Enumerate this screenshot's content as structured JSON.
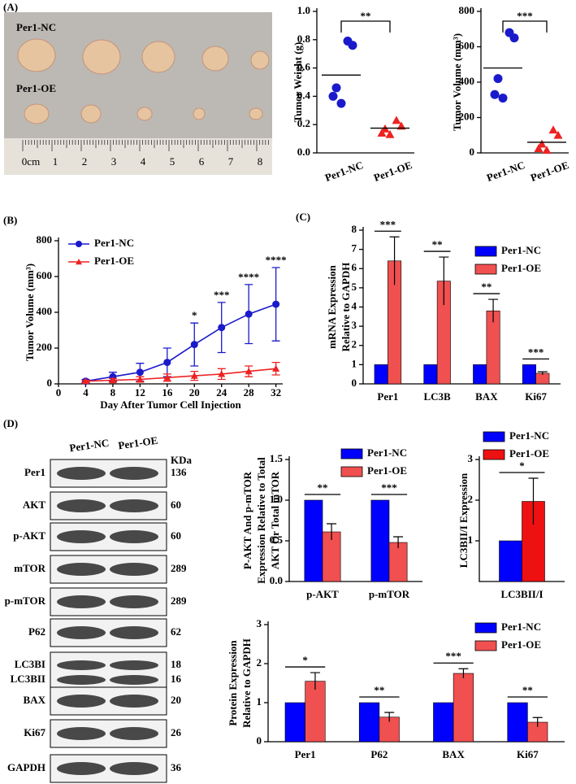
{
  "panel_labels": [
    "(A)",
    "(B)",
    "(C)",
    "(D)"
  ],
  "photo": {
    "labels": [
      "Per1-NC",
      "Per1-OE"
    ],
    "ruler": [
      "0cm",
      "1",
      "2",
      "3",
      "4",
      "5",
      "6",
      "7",
      "8"
    ]
  },
  "blot": {
    "header": [
      "Per1-NC",
      "Per1-OE",
      "KDa"
    ],
    "rows": [
      {
        "labels": [
          "Per1"
        ],
        "kda": [
          136
        ]
      },
      {
        "labels": [
          "AKT"
        ],
        "kda": [
          60
        ]
      },
      {
        "labels": [
          "p-AKT"
        ],
        "kda": [
          60
        ]
      },
      {
        "labels": [
          "mTOR"
        ],
        "kda": [
          289
        ]
      },
      {
        "labels": [
          "p-mTOR"
        ],
        "kda": [
          289
        ]
      },
      {
        "labels": [
          "P62"
        ],
        "kda": [
          62
        ]
      },
      {
        "labels": [
          "LC3BI",
          "LC3BII"
        ],
        "kda": [
          18,
          16
        ]
      },
      {
        "labels": [
          "BAX"
        ],
        "kda": [
          20
        ]
      },
      {
        "labels": [
          "Ki67"
        ],
        "kda": [
          26
        ]
      },
      {
        "labels": [
          "GAPDH"
        ],
        "kda": [
          36
        ]
      }
    ]
  },
  "chart_data": [
    {
      "type": "strip",
      "ylabel": [
        "Tumor Weight (g)"
      ],
      "categories": [
        "Per1-NC",
        "Per1-OE"
      ],
      "groups": [
        {
          "color": "#1a1acc",
          "marker": "circle",
          "values": [
            0.79,
            0.76,
            0.46,
            0.4,
            0.35
          ],
          "mean": 0.55
        },
        {
          "color": "#ee2222",
          "marker": "triangle",
          "values": [
            0.23,
            0.19,
            0.17,
            0.14,
            0.13
          ],
          "mean": 0.175
        }
      ],
      "significance": "**",
      "ylim": [
        0,
        1.0
      ],
      "yticks": [
        {
          "value": 0,
          "label": "0.0"
        },
        0.2,
        0.4,
        0.6,
        0.8,
        {
          "value": 1,
          "label": "1.0"
        }
      ]
    },
    {
      "type": "strip",
      "ylabel": [
        "Tumor Volume (mm³)"
      ],
      "categories": [
        "Per1-NC",
        "Per1-OE"
      ],
      "groups": [
        {
          "color": "#1a1acc",
          "marker": "circle",
          "values": [
            680,
            650,
            420,
            330,
            310
          ],
          "mean": 480
        },
        {
          "color": "#ee2222",
          "marker": "triangle",
          "values": [
            130,
            100,
            50,
            25,
            15
          ],
          "mean": 60
        }
      ],
      "significance": "***",
      "ylim": [
        0,
        800
      ],
      "yticks": [
        0,
        200,
        400,
        600,
        800
      ]
    },
    {
      "type": "line",
      "ylabel": [
        "Tumor Volume (mm³)"
      ],
      "xlabel": "Day After Tumor Cell Injection",
      "x": [
        4,
        8,
        12,
        16,
        20,
        24,
        28,
        32
      ],
      "series": [
        {
          "name": "Per1-NC",
          "color": "#1a1acc",
          "marker": "circle",
          "values": [
            15,
            40,
            65,
            120,
            220,
            315,
            390,
            445
          ],
          "errors": [
            10,
            25,
            50,
            80,
            120,
            140,
            165,
            205
          ]
        },
        {
          "name": "Per1-OE",
          "color": "#ee2222",
          "marker": "triangle",
          "values": [
            15,
            20,
            25,
            35,
            45,
            55,
            70,
            85
          ],
          "errors": [
            5,
            10,
            15,
            20,
            25,
            30,
            30,
            35
          ]
        }
      ],
      "annotations": [
        {
          "x": 20,
          "text": "*"
        },
        {
          "x": 24,
          "text": "***"
        },
        {
          "x": 28,
          "text": "****"
        },
        {
          "x": 32,
          "text": "****"
        }
      ],
      "legend": "upper left",
      "xlim": [
        0,
        33
      ],
      "xticks": [
        0,
        4,
        8,
        12,
        16,
        20,
        24,
        28,
        32
      ],
      "ylim": [
        0,
        800
      ],
      "yticks": [
        0,
        200,
        400,
        600,
        800
      ]
    },
    {
      "type": "bar",
      "ylabel": [
        "mRNA Expression",
        "Relative to GAPDH"
      ],
      "categories": [
        "Per1",
        "LC3B",
        "BAX",
        "Ki67"
      ],
      "series": [
        {
          "name": "Per1-NC",
          "color": "#0000ff",
          "values": [
            1,
            1,
            1,
            1
          ]
        },
        {
          "name": "Per1-OE",
          "color": "#f05050",
          "values": [
            6.4,
            5.35,
            3.8,
            0.55
          ],
          "errors": [
            1.25,
            1.25,
            0.6,
            0.08
          ]
        }
      ],
      "significance": [
        "***",
        "**",
        "**",
        "***"
      ],
      "legend": "upper right",
      "ylim": [
        0,
        8
      ],
      "yticks": [
        0,
        1,
        2,
        3,
        4,
        5,
        6,
        7,
        8
      ]
    },
    {
      "type": "bar",
      "ylabel": [
        "P-AKT And p-mTOR",
        "Expression Relative to Total",
        "AKT Or Total mTOR"
      ],
      "categories": [
        "p-AKT",
        "p-mTOR"
      ],
      "series": [
        {
          "name": "Per1-NC",
          "color": "#0000ff",
          "values": [
            1,
            1
          ]
        },
        {
          "name": "Per1-OE",
          "color": "#f05050",
          "values": [
            0.61,
            0.48
          ],
          "errors": [
            0.1,
            0.07
          ]
        }
      ],
      "significance": [
        "**",
        "***"
      ],
      "legend": "upper right",
      "ylim": [
        0,
        1.5
      ],
      "yticks": [
        {
          "value": 0,
          "label": "0.0"
        },
        0.5,
        {
          "value": 1,
          "label": "1.0"
        },
        1.5
      ]
    },
    {
      "type": "bar",
      "ylabel": [
        "LC3BII/I  Expression"
      ],
      "categories": [
        "LC3BII/I"
      ],
      "series": [
        {
          "name": "Per1-NC",
          "color": "#0000ff",
          "values": [
            1
          ]
        },
        {
          "name": "Per1-OE",
          "color": "#ee1111",
          "values": [
            1.97
          ],
          "errors": [
            0.57
          ]
        }
      ],
      "significance": [
        "*"
      ],
      "legend": "upper right",
      "ylim": [
        0,
        3
      ],
      "yticks": [
        1,
        2,
        3
      ]
    },
    {
      "type": "bar",
      "ylabel": [
        "Protein Expression",
        "Relative to GAPDH"
      ],
      "categories": [
        "Per1",
        "P62",
        "BAX",
        "Ki67"
      ],
      "series": [
        {
          "name": "Per1-NC",
          "color": "#0000ff",
          "values": [
            1,
            1,
            1,
            1
          ]
        },
        {
          "name": "Per1-OE",
          "color": "#f05050",
          "values": [
            1.55,
            0.63,
            1.75,
            0.5
          ],
          "errors": [
            0.22,
            0.12,
            0.12,
            0.12
          ]
        }
      ],
      "significance": [
        "*",
        "**",
        "***",
        "**"
      ],
      "legend": "upper right",
      "ylim": [
        0,
        3
      ],
      "yticks": [
        0,
        1,
        2,
        3
      ]
    }
  ]
}
